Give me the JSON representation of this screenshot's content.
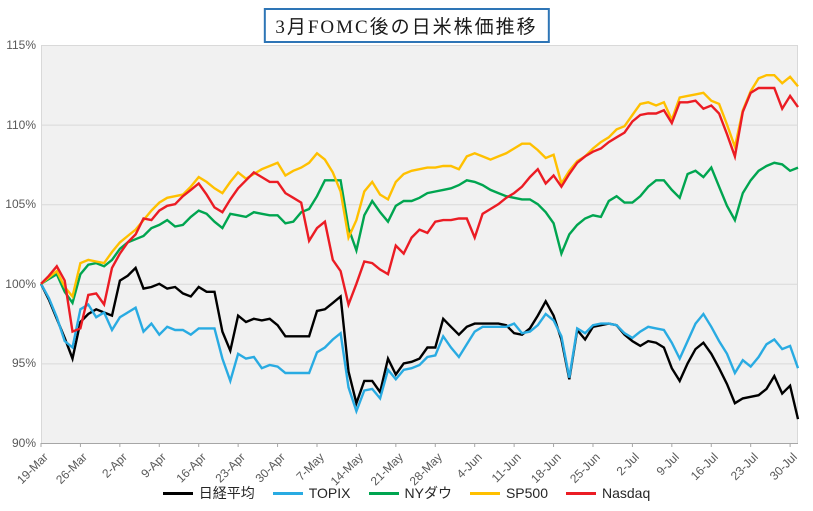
{
  "title": "3月FOMC後の日米株価推移",
  "chart_data": {
    "type": "line",
    "title": "3月FOMC後の日米株価推移",
    "x_description": "daily trading days from 19-Mar to 30-Jul (97 points), weekly tick labels",
    "x_tick_labels": [
      "19-Mar",
      "26-Mar",
      "2-Apr",
      "9-Apr",
      "16-Apr",
      "23-Apr",
      "30-Apr",
      "7-May",
      "14-May",
      "21-May",
      "28-May",
      "4-Jun",
      "11-Jun",
      "18-Jun",
      "25-Jun",
      "2-Jul",
      "9-Jul",
      "16-Jul",
      "23-Jul",
      "30-Jul"
    ],
    "y_tick_labels": [
      "90%",
      "95%",
      "100%",
      "105%",
      "110%",
      "115%"
    ],
    "ylim": [
      90,
      115
    ],
    "yticks": [
      90,
      95,
      100,
      105,
      110,
      115
    ],
    "grid": true,
    "legend_position": "bottom",
    "baseline_pct": 100,
    "series": [
      {
        "name": "日経平均",
        "color": "#000000",
        "values": [
          100.0,
          99.0,
          97.8,
          96.6,
          95.3,
          97.6,
          98.1,
          98.4,
          98.2,
          98.0,
          100.2,
          100.5,
          101.0,
          99.7,
          99.8,
          100.0,
          99.7,
          99.8,
          99.4,
          99.2,
          99.8,
          99.5,
          99.5,
          97.0,
          95.8,
          98.0,
          97.6,
          97.8,
          97.7,
          97.8,
          97.4,
          96.7,
          96.7,
          96.7,
          96.7,
          98.3,
          98.4,
          98.8,
          99.2,
          94.5,
          92.5,
          93.9,
          93.9,
          93.2,
          95.3,
          94.3,
          95.0,
          95.1,
          95.3,
          96.0,
          96.0,
          97.8,
          97.3,
          96.8,
          97.3,
          97.5,
          97.5,
          97.5,
          97.5,
          97.4,
          96.9,
          96.8,
          97.2,
          98.0,
          98.9,
          98.0,
          96.5,
          94.0,
          97.1,
          96.5,
          97.3,
          97.4,
          97.5,
          97.4,
          96.8,
          96.4,
          96.1,
          96.4,
          96.3,
          96.0,
          94.7,
          93.9,
          95.0,
          95.9,
          96.3,
          95.6,
          94.7,
          93.7,
          92.5,
          92.8,
          92.9,
          93.0,
          93.4,
          94.2,
          93.1,
          93.6,
          91.5
        ]
      },
      {
        "name": "TOPIX",
        "color": "#29ABE2",
        "values": [
          100.0,
          99.1,
          97.9,
          96.4,
          96.0,
          98.4,
          98.7,
          97.9,
          98.2,
          97.1,
          97.9,
          98.2,
          98.5,
          97.0,
          97.5,
          96.8,
          97.3,
          97.1,
          97.1,
          96.8,
          97.2,
          97.2,
          97.2,
          95.3,
          93.9,
          95.6,
          95.3,
          95.4,
          94.7,
          94.9,
          94.8,
          94.4,
          94.4,
          94.4,
          94.4,
          95.7,
          96.0,
          96.5,
          96.9,
          93.5,
          92.0,
          93.3,
          93.4,
          92.8,
          94.6,
          94.0,
          94.6,
          94.7,
          94.9,
          95.4,
          95.5,
          96.7,
          96.0,
          95.4,
          96.2,
          97.0,
          97.3,
          97.3,
          97.3,
          97.3,
          97.5,
          96.9,
          97.0,
          97.4,
          98.1,
          97.7,
          96.7,
          94.1,
          97.2,
          96.9,
          97.4,
          97.5,
          97.5,
          97.4,
          96.9,
          96.6,
          97.0,
          97.3,
          97.2,
          97.1,
          96.3,
          95.3,
          96.4,
          97.5,
          98.1,
          97.3,
          96.4,
          95.6,
          94.4,
          95.2,
          94.8,
          95.4,
          96.2,
          96.5,
          95.9,
          96.1,
          94.7
        ]
      },
      {
        "name": "NYダウ",
        "color": "#00A550",
        "values": [
          100.0,
          100.3,
          100.6,
          99.5,
          98.8,
          100.6,
          101.2,
          101.3,
          101.1,
          101.5,
          102.2,
          102.6,
          102.8,
          103.0,
          103.5,
          103.7,
          104.0,
          103.6,
          103.7,
          104.2,
          104.6,
          104.4,
          103.9,
          103.5,
          104.4,
          104.3,
          104.2,
          104.5,
          104.4,
          104.3,
          104.3,
          103.8,
          103.9,
          104.5,
          104.7,
          105.5,
          106.5,
          106.5,
          106.5,
          103.5,
          102.1,
          104.3,
          105.2,
          104.5,
          103.9,
          104.9,
          105.2,
          105.2,
          105.4,
          105.7,
          105.8,
          105.9,
          106.0,
          106.2,
          106.5,
          106.4,
          106.2,
          105.9,
          105.7,
          105.5,
          105.4,
          105.3,
          105.3,
          105.0,
          104.5,
          103.8,
          101.9,
          103.1,
          103.7,
          104.1,
          104.3,
          104.2,
          105.2,
          105.5,
          105.1,
          105.1,
          105.5,
          106.1,
          106.5,
          106.5,
          105.9,
          105.4,
          106.9,
          107.1,
          106.7,
          107.3,
          106.1,
          104.9,
          104.0,
          105.7,
          106.5,
          107.1,
          107.4,
          107.6,
          107.5,
          107.1,
          107.3
        ]
      },
      {
        "name": "SP500",
        "color": "#FFC000",
        "values": [
          100.0,
          100.4,
          100.8,
          99.8,
          99.2,
          101.3,
          101.5,
          101.4,
          101.3,
          102.0,
          102.6,
          103.0,
          103.4,
          104.0,
          104.6,
          105.1,
          105.4,
          105.5,
          105.6,
          106.1,
          106.7,
          106.4,
          106.0,
          105.7,
          106.4,
          107.0,
          106.6,
          106.9,
          107.2,
          107.4,
          107.6,
          106.8,
          107.1,
          107.3,
          107.6,
          108.2,
          107.8,
          107.0,
          105.8,
          102.9,
          104.0,
          105.8,
          106.4,
          105.6,
          105.3,
          106.4,
          106.9,
          107.1,
          107.2,
          107.3,
          107.3,
          107.4,
          107.4,
          107.2,
          108.0,
          108.2,
          108.0,
          107.8,
          108.0,
          108.2,
          108.5,
          108.8,
          108.8,
          108.4,
          107.9,
          108.1,
          106.3,
          107.1,
          107.7,
          108.0,
          108.5,
          108.9,
          109.2,
          109.7,
          109.9,
          110.6,
          111.3,
          111.4,
          111.2,
          111.4,
          110.3,
          111.7,
          111.8,
          111.9,
          112.0,
          111.5,
          111.3,
          110.0,
          108.6,
          110.9,
          112.1,
          112.9,
          113.1,
          113.1,
          112.6,
          113.0,
          112.4
        ]
      },
      {
        "name": "Nasdaq",
        "color": "#EB1C24",
        "values": [
          100.0,
          100.5,
          101.1,
          100.2,
          97.0,
          97.2,
          99.3,
          99.4,
          98.7,
          101.0,
          101.9,
          102.6,
          103.1,
          104.1,
          104.0,
          104.6,
          104.9,
          105.0,
          105.5,
          105.9,
          106.3,
          105.6,
          104.8,
          104.5,
          105.3,
          106.0,
          106.5,
          107.0,
          106.7,
          106.4,
          106.4,
          105.7,
          105.4,
          105.1,
          102.7,
          103.5,
          103.9,
          101.5,
          100.8,
          98.7,
          100.0,
          101.4,
          101.3,
          100.9,
          100.6,
          102.4,
          101.9,
          102.9,
          103.4,
          103.2,
          103.9,
          104.0,
          104.0,
          104.1,
          104.1,
          102.9,
          104.4,
          104.7,
          105.0,
          105.4,
          105.7,
          106.1,
          106.7,
          107.2,
          106.3,
          106.8,
          106.1,
          106.9,
          107.6,
          108.0,
          108.3,
          108.5,
          108.9,
          109.2,
          109.5,
          110.2,
          110.6,
          110.7,
          110.7,
          110.9,
          110.1,
          111.4,
          111.4,
          111.5,
          111.0,
          111.2,
          110.7,
          109.4,
          108.0,
          110.8,
          112.0,
          112.3,
          112.3,
          112.3,
          111.0,
          111.8,
          111.1
        ]
      }
    ]
  },
  "colors": {
    "background": "#FFFFFF",
    "plot_background": "#F1F1F1",
    "gridline": "#D9D9D9",
    "axis_line": "#A6A6A6",
    "axis_text": "#595959",
    "title_border": "#2E75B6",
    "legend_text": "#262626"
  }
}
